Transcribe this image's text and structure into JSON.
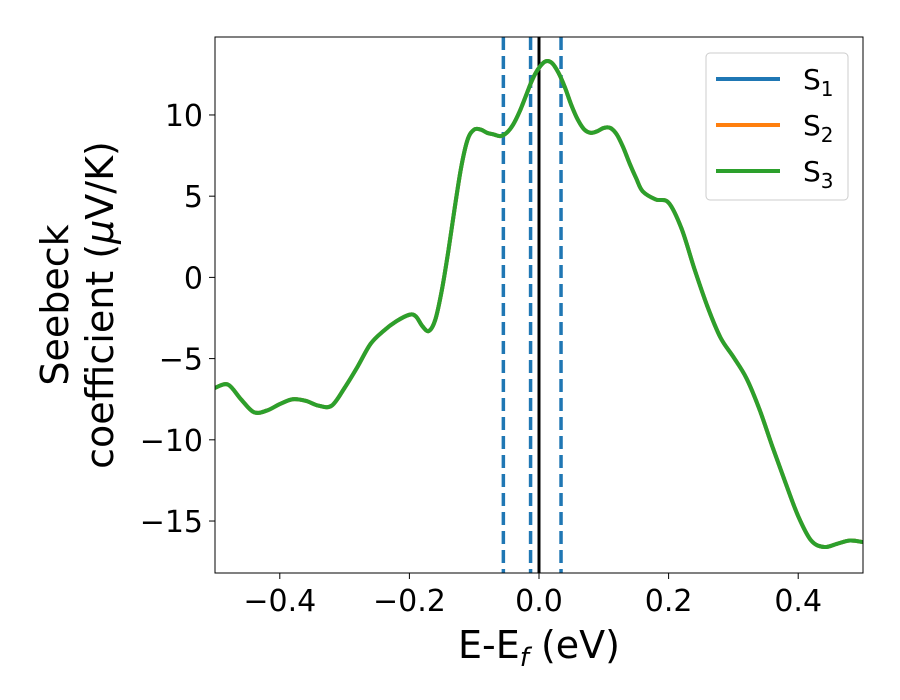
{
  "chart_data": {
    "type": "line",
    "xlabel": {
      "main": "E-E",
      "sub": "f",
      "tail": " (eV)"
    },
    "ylabel": {
      "line1": "Seebeck",
      "line2_pre": "coefficient  (",
      "line2_mu": "μ",
      "line2_post": "V/K)"
    },
    "xlim": [
      -0.5,
      0.5
    ],
    "ylim": [
      -18.2,
      14.8
    ],
    "xticks": [
      -0.4,
      -0.2,
      0.0,
      0.2,
      0.4
    ],
    "xtick_labels": [
      "−0.4",
      "−0.2",
      "0.0",
      "0.2",
      "0.4"
    ],
    "yticks": [
      -15,
      -10,
      -5,
      0,
      5,
      10
    ],
    "ytick_labels": [
      "−15",
      "−10",
      "−5",
      "0",
      "5",
      "10"
    ],
    "grid": false,
    "legend_position": "top-right",
    "series": [
      {
        "name": "S",
        "sub": "1",
        "color": "#1f77b4"
      },
      {
        "name": "S",
        "sub": "2",
        "color": "#ff7f0e"
      },
      {
        "name": "S",
        "sub": "3",
        "color": "#2ca02c",
        "x": [
          -0.5,
          -0.48,
          -0.46,
          -0.44,
          -0.42,
          -0.4,
          -0.38,
          -0.36,
          -0.34,
          -0.32,
          -0.3,
          -0.28,
          -0.26,
          -0.24,
          -0.22,
          -0.2,
          -0.19,
          -0.18,
          -0.17,
          -0.16,
          -0.15,
          -0.14,
          -0.13,
          -0.12,
          -0.11,
          -0.1,
          -0.09,
          -0.08,
          -0.07,
          -0.06,
          -0.05,
          -0.04,
          -0.03,
          -0.02,
          -0.01,
          0.0,
          0.01,
          0.02,
          0.03,
          0.04,
          0.05,
          0.06,
          0.07,
          0.08,
          0.09,
          0.1,
          0.11,
          0.12,
          0.13,
          0.14,
          0.15,
          0.16,
          0.18,
          0.2,
          0.22,
          0.24,
          0.26,
          0.28,
          0.3,
          0.32,
          0.34,
          0.36,
          0.38,
          0.4,
          0.42,
          0.44,
          0.46,
          0.48,
          0.5
        ],
        "y": [
          -6.8,
          -6.6,
          -7.5,
          -8.3,
          -8.2,
          -7.8,
          -7.5,
          -7.6,
          -7.9,
          -7.9,
          -6.8,
          -5.5,
          -4.1,
          -3.3,
          -2.7,
          -2.3,
          -2.4,
          -3.0,
          -3.3,
          -2.6,
          -0.8,
          1.6,
          4.3,
          6.8,
          8.5,
          9.1,
          9.1,
          8.9,
          8.8,
          8.7,
          8.9,
          9.4,
          10.2,
          11.2,
          12.2,
          12.9,
          13.3,
          13.2,
          12.6,
          11.7,
          10.6,
          9.7,
          9.1,
          8.9,
          9.0,
          9.2,
          9.2,
          8.8,
          8.0,
          7.0,
          6.1,
          5.3,
          4.8,
          4.6,
          3.0,
          0.5,
          -1.8,
          -3.7,
          -4.9,
          -6.2,
          -8.1,
          -10.4,
          -12.6,
          -14.7,
          -16.2,
          -16.6,
          -16.4,
          -16.2,
          -16.3
        ]
      }
    ],
    "vlines": [
      {
        "x": -0.055,
        "style": "dashed",
        "color": "#1f77b4"
      },
      {
        "x": -0.013,
        "style": "dashed",
        "color": "#1f77b4"
      },
      {
        "x": 0.034,
        "style": "dashed",
        "color": "#1f77b4"
      },
      {
        "x": 0.0,
        "style": "solid",
        "color": "#000000"
      }
    ]
  }
}
